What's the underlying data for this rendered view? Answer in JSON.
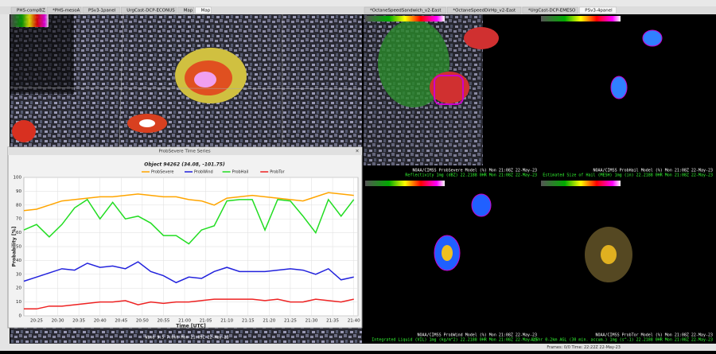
{
  "tabs_left": [
    "PHS-compBZ",
    "*PHS-mesoA",
    "PSv3-1panel",
    "UrgCast-DCP-ECONUS",
    "Map",
    "Map"
  ],
  "tabs_right": [
    "*OctaneSpeedSandwich_v2-East",
    "*OctaneSpeedDirHp_v2-East",
    "*UrgCast-DCP-EMESO",
    "PSv3-4panel"
  ],
  "window_title": "ProbSevere Time Series",
  "panels": [
    {
      "caption": "NOAA/CIMSS ProbSevere Model (%)  Mon 21:08Z 22-May-23",
      "subcaption": "Reflectivity 1mg (dBZ)  22.2188  0HR Mon 21:08Z 22-May-23"
    },
    {
      "caption": "NOAA/CIMSS ProbHail Model (%)  Mon 21:08Z 22-May-23",
      "subcaption": "Estimated Size of Hail (MESH) 1mg (in)  22.2188  0HR Mon 21:08Z 22-May-23"
    },
    {
      "caption": "NOAA/CIMSS ProbWind Model (%)  Mon 21:08Z 22-May-23",
      "subcaption": "Integrated Liquid (VIL) 1mg (kg/m^2)  22.2188  0HR Mon 21:08Z 22-May-23"
    },
    {
      "caption": "NOAA/CIMSS ProbTor Model (%)  Mon 21:08Z 22-May-23",
      "subcaption": "AzShr 0-2km AGL (30 min. accum.) 1mg (s^-1)  22.2188  0HR Mon 21:08Z 22-May-23"
    }
  ],
  "left_caption": "Wind 9.5 7.0kt  Mon 21:09Z 22-May-23",
  "status": "Frames: 0/0  Time: 22:22Z 22-May-23",
  "chart_data": {
    "type": "line",
    "title": "Object 94262 (34.08, -101.75)",
    "x_label": "Time [UTC]",
    "y_label": "Probability [%]",
    "x": [
      "20:22",
      "20:25",
      "20:28",
      "20:31",
      "20:34",
      "20:37",
      "20:40",
      "20:43",
      "20:46",
      "20:49",
      "20:52",
      "20:55",
      "20:58",
      "21:01",
      "21:04",
      "21:07",
      "21:10",
      "21:13",
      "21:16",
      "21:19",
      "21:22",
      "21:25",
      "21:28",
      "21:31",
      "21:34",
      "21:37",
      "21:40"
    ],
    "series": [
      {
        "name": "ProbSevere",
        "color": "#ffa500",
        "values": [
          76,
          77,
          80,
          83,
          84,
          85,
          86,
          86,
          87,
          88,
          87,
          86,
          86,
          84,
          83,
          80,
          85,
          86,
          87,
          86,
          85,
          84,
          83,
          86,
          89,
          88,
          87
        ]
      },
      {
        "name": "ProbWind",
        "color": "#2222dd",
        "values": [
          25,
          28,
          31,
          34,
          33,
          38,
          35,
          36,
          34,
          39,
          32,
          29,
          24,
          28,
          27,
          32,
          35,
          32,
          32,
          32,
          33,
          34,
          33,
          30,
          34,
          26,
          28
        ]
      },
      {
        "name": "ProbHail",
        "color": "#22dd22",
        "values": [
          62,
          66,
          57,
          66,
          78,
          84,
          70,
          82,
          70,
          72,
          67,
          58,
          58,
          52,
          62,
          65,
          83,
          84,
          84,
          62,
          84,
          83,
          72,
          60,
          84,
          72,
          84
        ]
      },
      {
        "name": "ProbTor",
        "color": "#ee2222",
        "values": [
          5,
          5,
          7,
          7,
          8,
          9,
          10,
          10,
          11,
          8,
          10,
          9,
          10,
          10,
          11,
          12,
          12,
          12,
          12,
          11,
          12,
          10,
          10,
          12,
          11,
          10,
          12
        ]
      }
    ],
    "xlim": [
      "20:22",
      "21:41"
    ],
    "xticks": [
      "20:25",
      "20:30",
      "20:35",
      "20:40",
      "20:45",
      "20:50",
      "20:55",
      "21:00",
      "21:05",
      "21:10",
      "21:15",
      "21:20",
      "21:25",
      "21:30",
      "21:35",
      "21:40"
    ],
    "ylim": [
      0,
      100
    ],
    "yticks": [
      0,
      10,
      20,
      30,
      40,
      50,
      60,
      70,
      80,
      90,
      100
    ],
    "grid": true
  }
}
